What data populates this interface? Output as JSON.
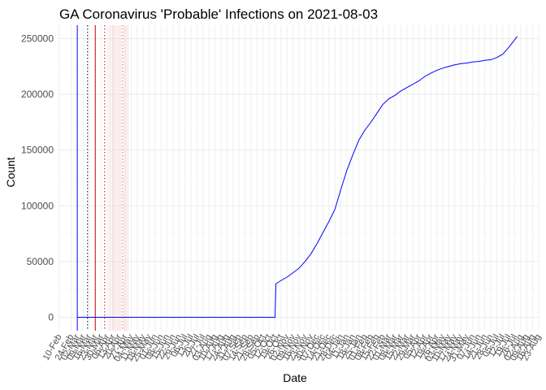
{
  "chart_data": {
    "type": "line",
    "title": "GA Coronavirus 'Probable' Infections on 2021-08-03",
    "xlabel": "Date",
    "ylabel": "Count",
    "x_range": [
      "2020-02-10",
      "2021-08-23"
    ],
    "ylim": [
      -12000,
      262000
    ],
    "y_ticks": [
      0,
      50000,
      100000,
      150000,
      200000,
      250000
    ],
    "x_tick_labels": [
      {
        "date": "2020-02-10",
        "label": "10-Feb"
      },
      {
        "date": "2020-02-24",
        "label": "24-Feb"
      },
      {
        "date": "2020-03-02",
        "label": "02-Mar"
      },
      {
        "date": "2020-03-09",
        "label": "09-Mar"
      },
      {
        "date": "2020-03-16",
        "label": "16-Mar"
      },
      {
        "date": "2020-03-23",
        "label": "23-Mar"
      },
      {
        "date": "2020-03-30",
        "label": "30-Mar"
      },
      {
        "date": "2020-04-06",
        "label": "06-Apr"
      },
      {
        "date": "2020-04-13",
        "label": "13-Apr"
      },
      {
        "date": "2020-04-20",
        "label": "20-Apr"
      },
      {
        "date": "2020-04-27",
        "label": "27-Apr"
      },
      {
        "date": "2020-05-04",
        "label": "04-May"
      },
      {
        "date": "2020-05-11",
        "label": "11-May"
      },
      {
        "date": "2020-05-18",
        "label": "18-May"
      },
      {
        "date": "2020-05-25",
        "label": "25-May"
      },
      {
        "date": "2020-06-01",
        "label": "01-Jun"
      },
      {
        "date": "2020-06-08",
        "label": "08-Jun"
      },
      {
        "date": "2020-06-15",
        "label": "15-Jun"
      },
      {
        "date": "2020-06-22",
        "label": "22-Jun"
      },
      {
        "date": "2020-06-29",
        "label": "29-Jun"
      },
      {
        "date": "2020-07-06",
        "label": "06-Jul"
      },
      {
        "date": "2020-07-13",
        "label": "13-Jul"
      },
      {
        "date": "2020-07-20",
        "label": "20-Jul"
      },
      {
        "date": "2020-07-27",
        "label": "27-Jul"
      },
      {
        "date": "2020-08-03",
        "label": "03-Aug"
      },
      {
        "date": "2020-08-10",
        "label": "10-Aug"
      },
      {
        "date": "2020-08-17",
        "label": "17-Aug"
      },
      {
        "date": "2020-08-24",
        "label": "24-Aug"
      },
      {
        "date": "2020-08-31",
        "label": "31-Aug"
      },
      {
        "date": "2020-09-07",
        "label": "07-Sep"
      },
      {
        "date": "2020-09-14",
        "label": "14-Sep"
      },
      {
        "date": "2020-09-21",
        "label": "21-Sep"
      },
      {
        "date": "2020-09-28",
        "label": "28-Sep"
      },
      {
        "date": "2020-10-05",
        "label": "05-Oct"
      },
      {
        "date": "2020-10-12",
        "label": "12-Oct"
      },
      {
        "date": "2020-10-19",
        "label": "19-Oct"
      },
      {
        "date": "2020-10-26",
        "label": "26-Oct"
      },
      {
        "date": "2020-11-02",
        "label": "02-Nov"
      },
      {
        "date": "2020-11-09",
        "label": "09-Nov"
      },
      {
        "date": "2020-11-16",
        "label": "16-Nov"
      },
      {
        "date": "2020-11-23",
        "label": "23-Nov"
      },
      {
        "date": "2020-11-30",
        "label": "30-Nov"
      },
      {
        "date": "2020-12-07",
        "label": "07-Dec"
      },
      {
        "date": "2020-12-14",
        "label": "14-Dec"
      },
      {
        "date": "2020-12-21",
        "label": "21-Dec"
      },
      {
        "date": "2020-12-28",
        "label": "28-Dec"
      },
      {
        "date": "2021-01-04",
        "label": "04-Jan"
      },
      {
        "date": "2021-01-11",
        "label": "11-Jan"
      },
      {
        "date": "2021-01-18",
        "label": "18-Jan"
      },
      {
        "date": "2021-01-25",
        "label": "25-Jan"
      },
      {
        "date": "2021-02-01",
        "label": "01-Feb"
      },
      {
        "date": "2021-02-08",
        "label": "08-Feb"
      },
      {
        "date": "2021-02-15",
        "label": "15-Feb"
      },
      {
        "date": "2021-02-22",
        "label": "22-Feb"
      },
      {
        "date": "2021-03-01",
        "label": "01-Mar"
      },
      {
        "date": "2021-03-08",
        "label": "08-Mar"
      },
      {
        "date": "2021-03-15",
        "label": "15-Mar"
      },
      {
        "date": "2021-03-22",
        "label": "22-Mar"
      },
      {
        "date": "2021-03-29",
        "label": "29-Mar"
      },
      {
        "date": "2021-04-05",
        "label": "05-Apr"
      },
      {
        "date": "2021-04-12",
        "label": "12-Apr"
      },
      {
        "date": "2021-04-19",
        "label": "19-Apr"
      },
      {
        "date": "2021-04-26",
        "label": "26-Apr"
      },
      {
        "date": "2021-05-03",
        "label": "03-May"
      },
      {
        "date": "2021-05-10",
        "label": "10-May"
      },
      {
        "date": "2021-05-17",
        "label": "17-May"
      },
      {
        "date": "2021-05-24",
        "label": "24-May"
      },
      {
        "date": "2021-05-31",
        "label": "31-May"
      },
      {
        "date": "2021-06-07",
        "label": "07-Jun"
      },
      {
        "date": "2021-06-14",
        "label": "14-Jun"
      },
      {
        "date": "2021-06-21",
        "label": "21-Jun"
      },
      {
        "date": "2021-06-28",
        "label": "28-Jun"
      },
      {
        "date": "2021-07-05",
        "label": "05-Jul"
      },
      {
        "date": "2021-07-12",
        "label": "12-Jul"
      },
      {
        "date": "2021-07-19",
        "label": "19-Jul"
      },
      {
        "date": "2021-07-26",
        "label": "26-Jul"
      },
      {
        "date": "2021-08-02",
        "label": "02-Aug"
      },
      {
        "date": "2021-08-09",
        "label": "09-Aug"
      },
      {
        "date": "2021-08-16",
        "label": "16-Aug"
      },
      {
        "date": "2021-08-23",
        "label": "23-Aug"
      }
    ],
    "series": [
      {
        "color": "#0000ff",
        "points": [
          [
            "2020-03-02",
            0
          ],
          [
            "2020-10-19",
            0
          ],
          [
            "2020-10-20",
            30000
          ],
          [
            "2020-10-26",
            33000
          ],
          [
            "2020-11-02",
            36000
          ],
          [
            "2020-11-09",
            40000
          ],
          [
            "2020-11-16",
            44000
          ],
          [
            "2020-11-23",
            50000
          ],
          [
            "2020-11-30",
            57000
          ],
          [
            "2020-12-07",
            66000
          ],
          [
            "2020-12-14",
            76000
          ],
          [
            "2020-12-21",
            86000
          ],
          [
            "2020-12-28",
            97000
          ],
          [
            "2021-01-04",
            115000
          ],
          [
            "2021-01-11",
            132000
          ],
          [
            "2021-01-18",
            146000
          ],
          [
            "2021-01-25",
            159000
          ],
          [
            "2021-02-01",
            168000
          ],
          [
            "2021-02-08",
            175000
          ],
          [
            "2021-02-15",
            183000
          ],
          [
            "2021-02-22",
            191000
          ],
          [
            "2021-03-01",
            196000
          ],
          [
            "2021-03-08",
            199000
          ],
          [
            "2021-03-15",
            203000
          ],
          [
            "2021-03-22",
            206000
          ],
          [
            "2021-03-29",
            209000
          ],
          [
            "2021-04-05",
            212000
          ],
          [
            "2021-04-12",
            216000
          ],
          [
            "2021-04-19",
            219000
          ],
          [
            "2021-04-26",
            221500
          ],
          [
            "2021-05-03",
            223500
          ],
          [
            "2021-05-10",
            225000
          ],
          [
            "2021-05-17",
            226500
          ],
          [
            "2021-05-24",
            227500
          ],
          [
            "2021-05-31",
            228000
          ],
          [
            "2021-06-07",
            229000
          ],
          [
            "2021-06-14",
            229500
          ],
          [
            "2021-06-21",
            230500
          ],
          [
            "2021-06-28",
            231000
          ],
          [
            "2021-07-05",
            233000
          ],
          [
            "2021-07-12",
            236000
          ],
          [
            "2021-07-19",
            242000
          ],
          [
            "2021-07-26",
            249000
          ],
          [
            "2021-07-29",
            252000
          ]
        ]
      }
    ],
    "vlines": [
      {
        "date": "2020-03-02",
        "color": "#0000ff",
        "style": "solid"
      },
      {
        "date": "2020-03-14",
        "color": "#000000",
        "style": "dotted"
      },
      {
        "date": "2020-03-23",
        "color": "#cc0000",
        "style": "solid"
      },
      {
        "date": "2020-04-03",
        "color": "#cc0000",
        "style": "dotted"
      },
      {
        "date": "2020-04-24",
        "color": "#e06666",
        "style": "dotted"
      }
    ],
    "pale_vlines": [
      "2020-04-08",
      "2020-04-10",
      "2020-04-12",
      "2020-04-14",
      "2020-04-16",
      "2020-04-18",
      "2020-04-20",
      "2020-04-22",
      "2020-04-26",
      "2020-04-28",
      "2020-04-30"
    ],
    "grid": true
  }
}
